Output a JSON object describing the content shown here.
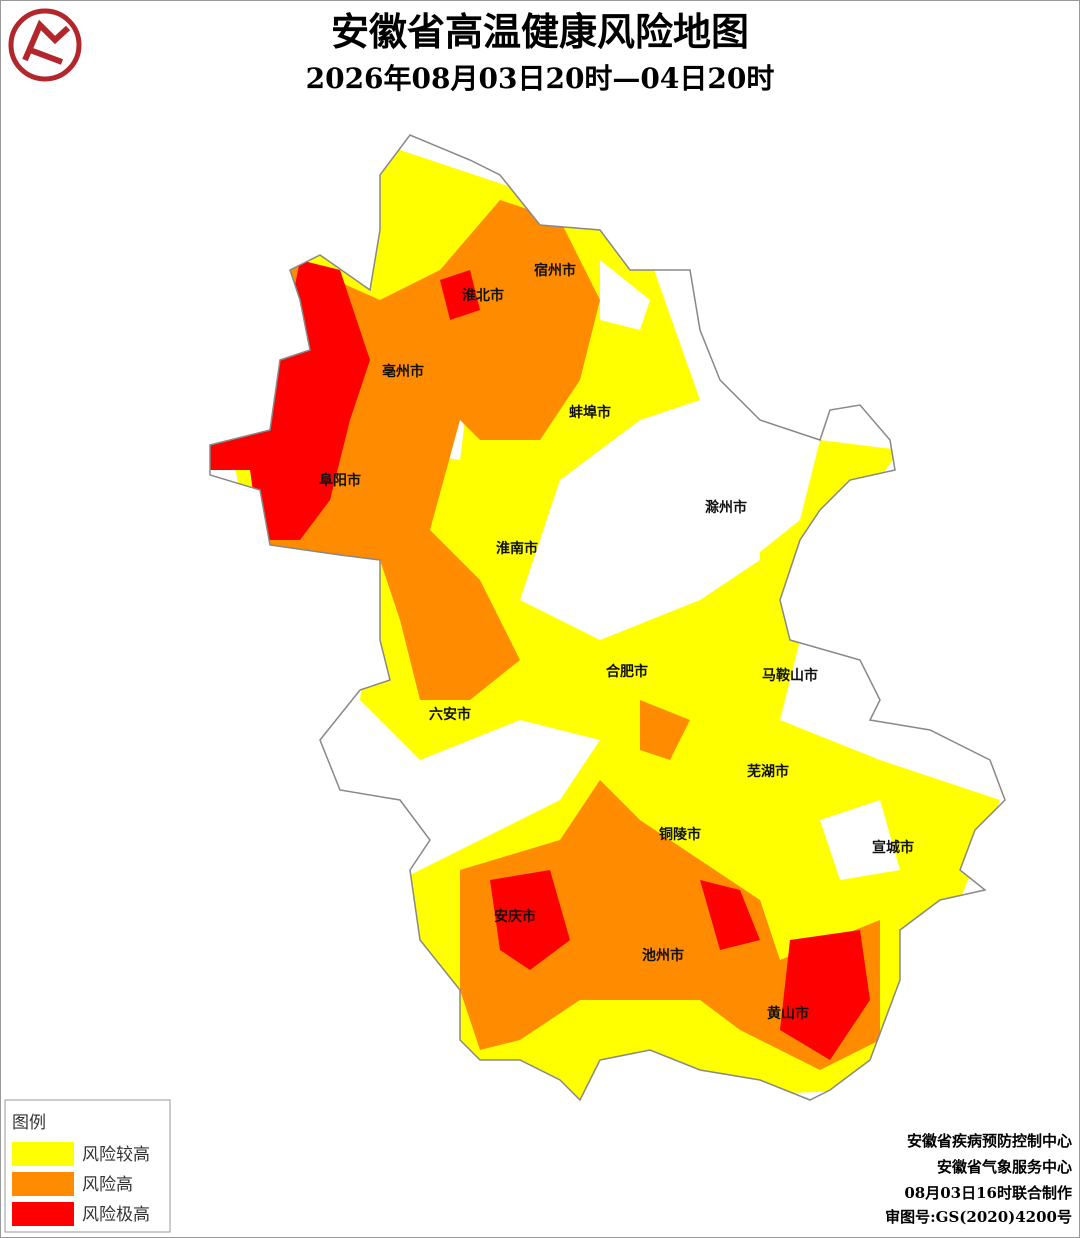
{
  "header": {
    "title": "安徽省高温健康风险地图",
    "subtitle": "2026年08月03日20时—04日20时"
  },
  "cities": [
    "宿州市",
    "淮北市",
    "亳州市",
    "蚌埠市",
    "阜阳市",
    "滁州市",
    "淮南市",
    "合肥市",
    "马鞍山市",
    "六安市",
    "芜湖市",
    "铜陵市",
    "宣城市",
    "安庆市",
    "池州市",
    "黄山市"
  ],
  "legend": {
    "title": "图例",
    "items": [
      "风险较高",
      "风险高",
      "风险极高"
    ]
  },
  "footer": {
    "lines": [
      "安徽省疾病预防控制中心",
      "安徽省气象服务中心",
      "08月03日16时联合制作"
    ],
    "review_number": "审图号:GS(2020)4200号"
  }
}
